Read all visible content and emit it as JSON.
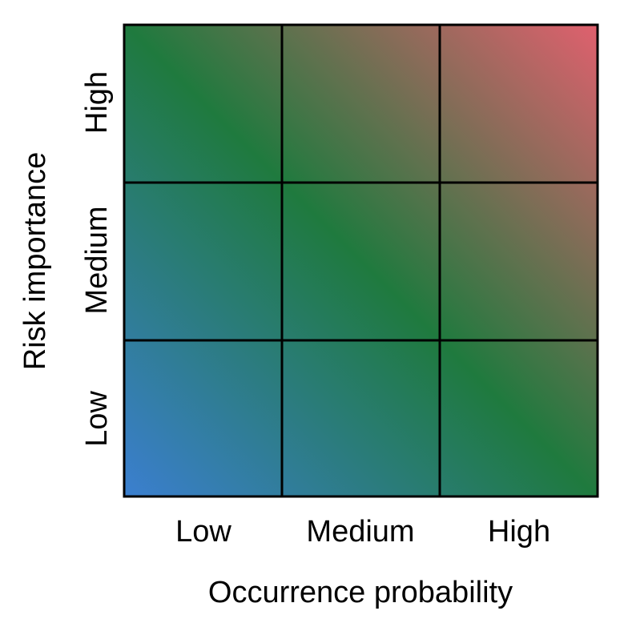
{
  "matrix": {
    "x_axis": {
      "title": "Occurrence probability",
      "ticks": [
        "Low",
        "Medium",
        "High"
      ]
    },
    "y_axis": {
      "title": "Risk importance",
      "ticks": [
        "Low",
        "Medium",
        "High"
      ]
    },
    "colors": {
      "low_corner": "#3b7fd0",
      "mid_band": "#1f7a3e",
      "high_corner": "#e0606e",
      "grid_lines": "#000000"
    }
  }
}
